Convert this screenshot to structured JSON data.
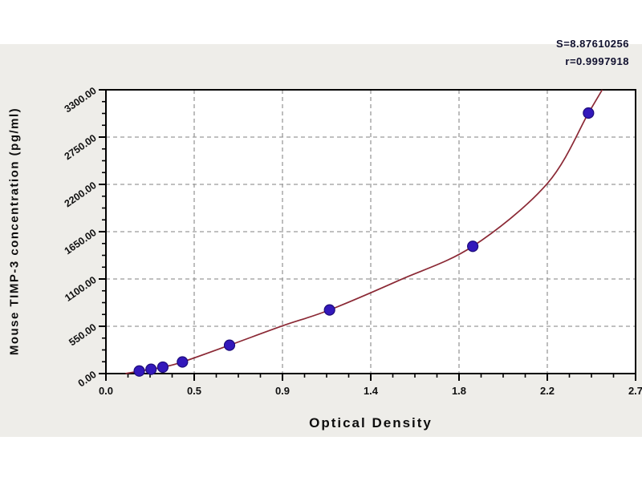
{
  "stats": {
    "s": "S=8.87610256",
    "r": "r=0.9997918"
  },
  "colors": {
    "panel_bg": "#eeede9",
    "plot_bg": "#ffffff",
    "grid": "#9a9a9a",
    "axis": "#000000",
    "curve": "#8b2935",
    "marker_fill": "#3318bb",
    "marker_stroke": "#1d0c7a",
    "stats_text": "#10102e"
  },
  "chart_data": {
    "type": "scatter",
    "title": "",
    "xlabel": "Optical Density",
    "ylabel": "Mouse TIMP-3 concentration (pg/ml)",
    "xlim": [
      0,
      2.7
    ],
    "ylim": [
      0,
      3300
    ],
    "x_major_ticks": [
      0,
      0.45,
      0.9,
      1.35,
      1.8,
      2.25,
      2.7
    ],
    "x_tick_labels": [
      "0.0",
      "0.5",
      "0.9",
      "1.4",
      "1.8",
      "2.2",
      "2.7"
    ],
    "y_major_ticks": [
      0,
      550,
      1100,
      1650,
      2200,
      2750,
      3300
    ],
    "y_tick_labels": [
      "0.00",
      "550.00",
      "1100.00",
      "1650.00",
      "2200.00",
      "2750.00",
      "3300.00"
    ],
    "minor_divisions_per_major": 4,
    "grid": "dashed gray lines at interior major ticks, both axes",
    "legend": null,
    "annotations": [
      "S=8.87610256",
      "r=0.9997918"
    ],
    "series": [
      {
        "name": "standard-points",
        "type": "scatter",
        "points": [
          [
            0.17,
            30
          ],
          [
            0.23,
            50
          ],
          [
            0.29,
            75
          ],
          [
            0.39,
            135
          ],
          [
            0.63,
            330
          ],
          [
            1.14,
            740
          ],
          [
            1.87,
            1480
          ],
          [
            2.46,
            3030
          ]
        ]
      },
      {
        "name": "fitted-curve",
        "type": "line",
        "points": [
          [
            0.1,
            0
          ],
          [
            0.17,
            30
          ],
          [
            0.23,
            50
          ],
          [
            0.29,
            75
          ],
          [
            0.39,
            135
          ],
          [
            0.63,
            330
          ],
          [
            0.9,
            555
          ],
          [
            1.14,
            740
          ],
          [
            1.5,
            1090
          ],
          [
            1.87,
            1480
          ],
          [
            2.25,
            2210
          ],
          [
            2.46,
            3030
          ],
          [
            2.53,
            3300
          ]
        ]
      }
    ]
  }
}
